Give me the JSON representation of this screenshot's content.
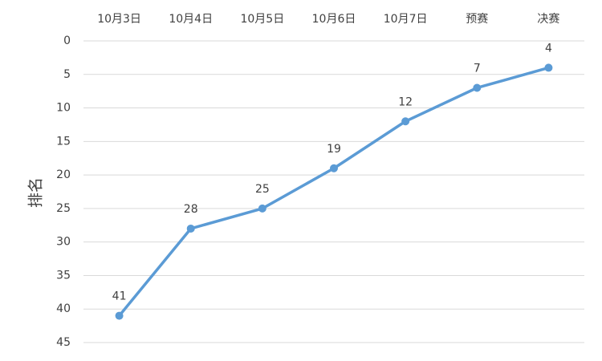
{
  "chart_data": {
    "type": "line",
    "y_label": "排名",
    "categories": [
      "10月3日",
      "10月4日",
      "10月5日",
      "10月6日",
      "10月7日",
      "预赛",
      "决赛"
    ],
    "series": [
      {
        "name": "排名",
        "color": "#5b9bd5",
        "values": [
          41,
          28,
          25,
          19,
          12,
          7,
          4
        ]
      }
    ],
    "ylim": [
      0,
      45
    ],
    "yticks": [
      0,
      5,
      10,
      15,
      20,
      25,
      30,
      35,
      40,
      45
    ],
    "y_inverted": true,
    "grid": true,
    "legend": false,
    "x_axis_position": "top"
  }
}
